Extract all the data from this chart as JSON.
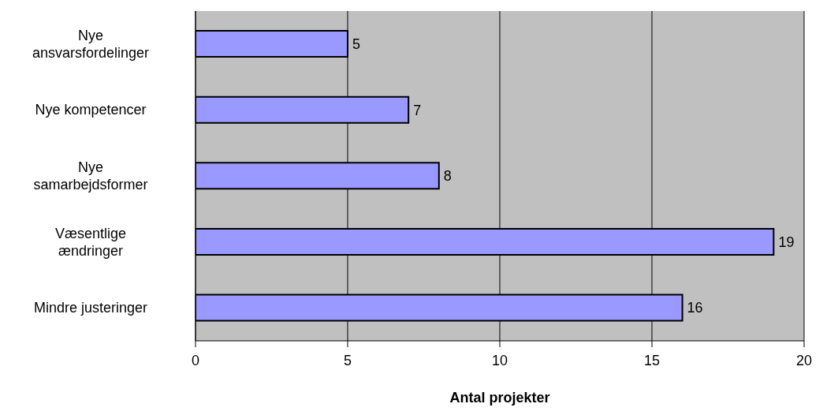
{
  "chart_data": {
    "type": "bar",
    "orientation": "horizontal",
    "xlabel": "Antal projekter",
    "categories": [
      "Nye ansvarsfordelinger",
      "Nye kompetencer",
      "Nye samarbejdsformer",
      "Væsentlige ændringer",
      "Mindre justeringer"
    ],
    "values": [
      5,
      7,
      8,
      19,
      16
    ],
    "color": "#9999ff",
    "xlim": [
      0,
      20
    ],
    "xticks": [
      0,
      5,
      10,
      15,
      20
    ],
    "grid": "x",
    "data_labels": true
  }
}
